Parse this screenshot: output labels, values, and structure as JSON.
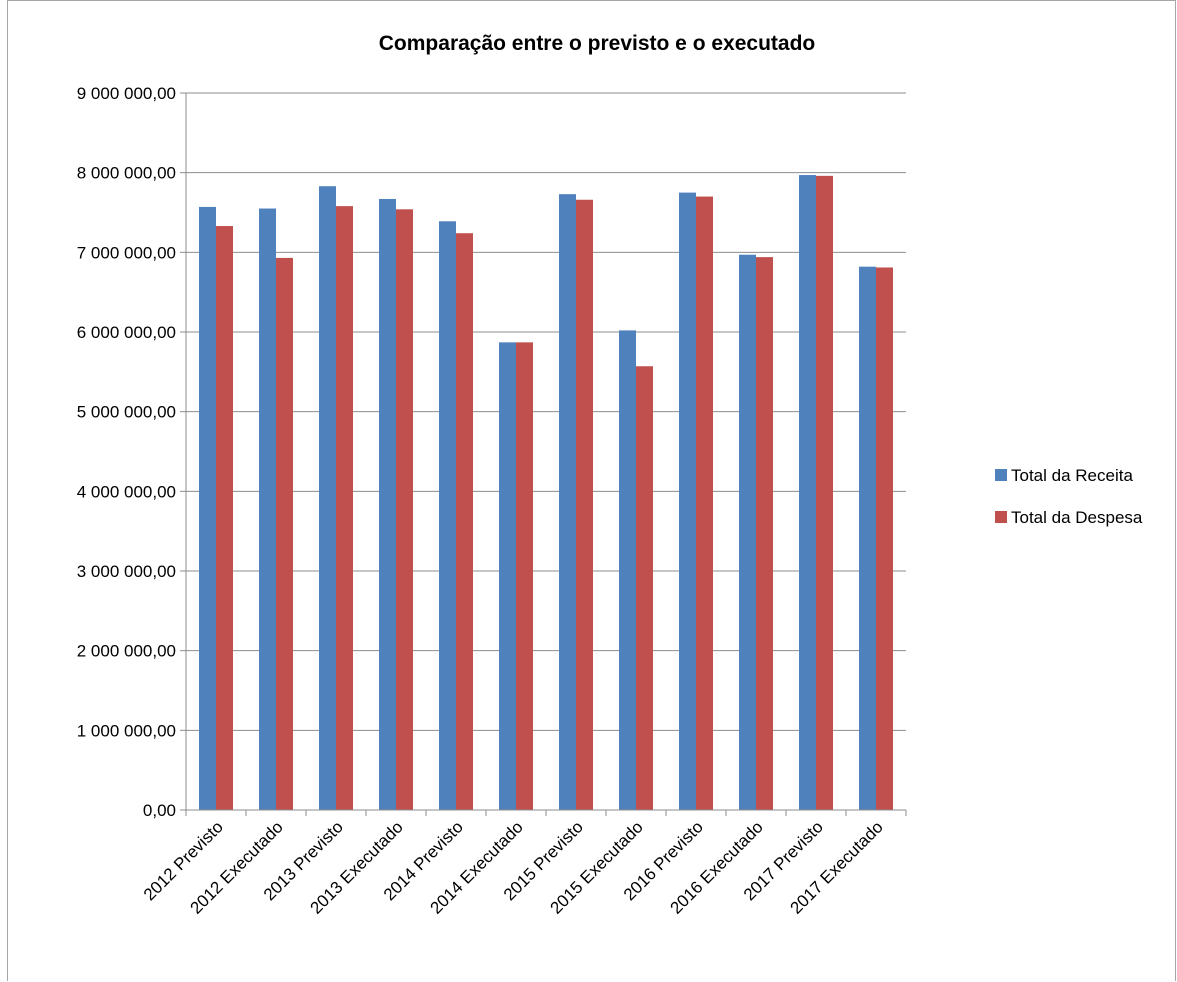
{
  "chart_data": {
    "type": "bar",
    "title": "Comparação entre o previsto e o executado",
    "xlabel": "",
    "ylabel": "",
    "ylim": [
      0,
      9000000
    ],
    "y_ticks": [
      0,
      1000000,
      2000000,
      3000000,
      4000000,
      5000000,
      6000000,
      7000000,
      8000000,
      9000000
    ],
    "y_tick_labels": [
      "0,00",
      "1 000 000,00",
      "2 000 000,00",
      "3 000 000,00",
      "4 000 000,00",
      "5 000 000,00",
      "6 000 000,00",
      "7 000 000,00",
      "8 000 000,00",
      "9 000 000,00"
    ],
    "grid": true,
    "legend_position": "right",
    "categories": [
      "2012 Previsto",
      "2012 Executado",
      "2013 Previsto",
      "2013 Executado",
      "2014 Previsto",
      "2014 Executado",
      "2015 Previsto",
      "2015 Executado",
      "2016 Previsto",
      "2016 Executado",
      "2017 Previsto",
      "2017 Executado"
    ],
    "series": [
      {
        "name": "Total da Receita",
        "color": "#4f81bd",
        "values": [
          7570000,
          7550000,
          7830000,
          7670000,
          7390000,
          5870000,
          7730000,
          6020000,
          7750000,
          6970000,
          7970000,
          6820000
        ]
      },
      {
        "name": "Total da Despesa",
        "color": "#c0504d",
        "values": [
          7330000,
          6930000,
          7580000,
          7540000,
          7240000,
          5870000,
          7660000,
          5570000,
          7700000,
          6940000,
          7960000,
          6810000
        ]
      }
    ]
  }
}
